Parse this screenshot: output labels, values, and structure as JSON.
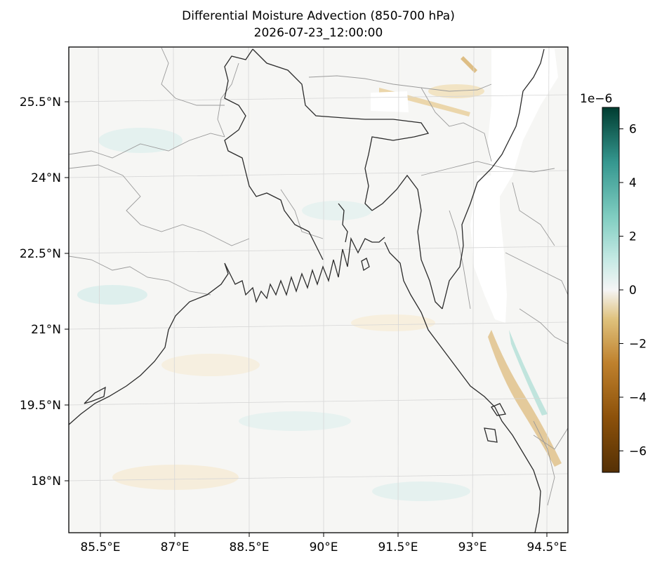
{
  "title": "Differential Moisture Advection (850-700 hPa)",
  "subtitle": "2026-07-23_12:00:00",
  "map": {
    "region": "Bay of Bengal / Bangladesh",
    "projection_graticule": true,
    "lat_ticks": [
      "25.5°N",
      "24°N",
      "22.5°N",
      "21°N",
      "19.5°N",
      "18°N"
    ],
    "lon_ticks": [
      "85.5°E",
      "87°E",
      "88.5°E",
      "90°E",
      "91.5°E",
      "93°E",
      "94.5°E"
    ],
    "lat_values": [
      25.5,
      24,
      22.5,
      21,
      19.5,
      18
    ],
    "lon_values": [
      85.5,
      87,
      88.5,
      90,
      91.5,
      93,
      94.5
    ],
    "coastline_color": "#2b2b2b",
    "border_color": "#9a9a9a",
    "masked_terrain_color": "#ffffff"
  },
  "colorbar": {
    "exponent_label": "1e−6",
    "ticks": [
      "6",
      "4",
      "2",
      "0",
      "−2",
      "−4",
      "−6"
    ],
    "tick_values": [
      6,
      4,
      2,
      0,
      -2,
      -4,
      -6
    ],
    "range": [
      -6.8,
      6.8
    ],
    "colormap": "BrBG",
    "colors": {
      "min": "#543005",
      "low": "#bf812d",
      "mid_low": "#f6e8c3",
      "mid": "#f5f5f5",
      "mid_high": "#c7eae5",
      "high": "#35978f",
      "max": "#003c30"
    }
  }
}
